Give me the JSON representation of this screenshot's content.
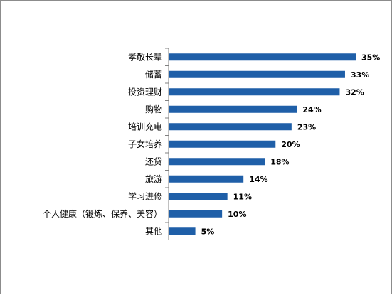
{
  "chart_data": {
    "type": "bar",
    "orientation": "horizontal",
    "categories": [
      "孝敬长辈",
      "储蓄",
      "投资理财",
      "购物",
      "培训充电",
      "子女培养",
      "还贷",
      "旅游",
      "学习进修",
      "个人健康（锻炼、保养、美容）",
      "其他"
    ],
    "values": [
      35,
      33,
      32,
      24,
      23,
      20,
      18,
      14,
      11,
      10,
      5
    ],
    "value_labels": [
      "35%",
      "33%",
      "32%",
      "24%",
      "23%",
      "20%",
      "18%",
      "14%",
      "11%",
      "10%",
      "5%"
    ],
    "unit": "%",
    "xlim": [
      0,
      35
    ],
    "grid": false,
    "legend": "none",
    "bar_color": "#1f5fa8",
    "axis_color": "#808080"
  }
}
